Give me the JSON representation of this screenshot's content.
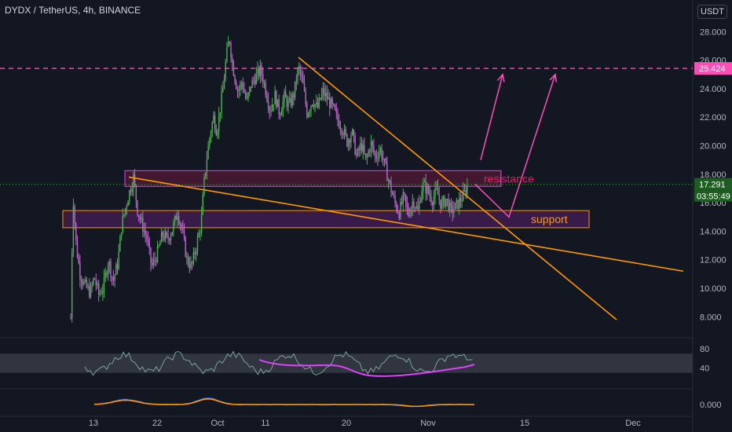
{
  "header": {
    "title": "DYDX / TetherUS, 4h, BINANCE",
    "currency": "USDT"
  },
  "colors": {
    "background": "#131722",
    "up": "#26a69a",
    "down": "#ef5350",
    "green": "#4caf50",
    "purple": "#ba68c8",
    "orange": "#ff9800",
    "pink": "#ff4db8",
    "magenta": "#e040fb",
    "blue": "#2962ff",
    "axis": "#b2b5be",
    "grid": "#2a2e39"
  },
  "chart_data": {
    "type": "candlestick",
    "symbol": "DYDX / TetherUS",
    "interval": "4h",
    "exchange": "BINANCE",
    "price_axis": {
      "ticks": [
        "28.000",
        "26.000",
        "24.000",
        "22.000",
        "20.000",
        "18.000",
        "16.000",
        "14.000",
        "12.000",
        "10.000",
        "8.000"
      ],
      "ylim": [
        7.8,
        28.8
      ]
    },
    "time_axis": {
      "labels": [
        "13",
        "22",
        "Oct",
        "11",
        "20",
        "Nov",
        "15",
        "Dec"
      ]
    },
    "last_price": "17.291",
    "countdown": "03:55:49",
    "horizontal_line_price": "25.424",
    "price_path": [
      [
        9.0,
        7.9
      ],
      [
        9.3,
        16.5
      ],
      [
        9.7,
        13
      ],
      [
        10.2,
        11
      ],
      [
        10.8,
        10.2
      ],
      [
        11.5,
        9.7
      ],
      [
        12,
        10.8
      ],
      [
        12.6,
        9.5
      ],
      [
        13.2,
        10.2
      ],
      [
        13.8,
        12
      ],
      [
        14.4,
        10.5
      ],
      [
        15,
        11.8
      ],
      [
        15.5,
        14.5
      ],
      [
        16.3,
        16.4
      ],
      [
        17,
        17.8
      ],
      [
        17.5,
        15.5
      ],
      [
        18,
        14.6
      ],
      [
        18.7,
        13.5
      ],
      [
        19.3,
        11.5
      ],
      [
        20,
        12.4
      ],
      [
        20.7,
        13.8
      ],
      [
        21.3,
        13.4
      ],
      [
        22,
        14.2
      ],
      [
        22.6,
        15.4
      ],
      [
        23.2,
        14
      ],
      [
        23.8,
        12
      ],
      [
        24.4,
        11.5
      ],
      [
        25,
        13
      ],
      [
        25.6,
        14.5
      ],
      [
        26,
        17.5
      ],
      [
        26.4,
        19.5
      ],
      [
        26.8,
        21
      ],
      [
        27.2,
        22
      ],
      [
        27.6,
        21
      ],
      [
        28,
        22.5
      ],
      [
        28.4,
        24
      ],
      [
        28.8,
        26.2
      ],
      [
        29.2,
        27.6
      ],
      [
        29.5,
        26
      ],
      [
        29.9,
        24.8
      ],
      [
        30.3,
        23.8
      ],
      [
        30.8,
        24.5
      ],
      [
        31.4,
        23
      ],
      [
        31.9,
        24.2
      ],
      [
        32.5,
        24.8
      ],
      [
        33.2,
        25.3
      ],
      [
        33.8,
        24
      ],
      [
        34.4,
        22.5
      ],
      [
        35,
        23.5
      ],
      [
        35.6,
        22.3
      ],
      [
        36.2,
        23.4
      ],
      [
        36.8,
        22.8
      ],
      [
        37.4,
        23.6
      ],
      [
        38,
        25.5
      ],
      [
        38.5,
        24.5
      ],
      [
        39.1,
        22.3
      ],
      [
        39.8,
        23.2
      ],
      [
        40.4,
        22.6
      ],
      [
        41.1,
        23.8
      ],
      [
        41.8,
        23.2
      ],
      [
        42.4,
        22.6
      ],
      [
        43,
        21.8
      ],
      [
        43.6,
        21.2
      ],
      [
        44.2,
        20.3
      ],
      [
        44.8,
        21
      ],
      [
        45.4,
        19.2
      ],
      [
        46,
        20.1
      ],
      [
        46.6,
        18.9
      ],
      [
        47.2,
        20.2
      ],
      [
        47.8,
        19.2
      ],
      [
        48.4,
        19.8
      ],
      [
        49,
        18.6
      ],
      [
        49.6,
        17.3
      ],
      [
        50.2,
        16.1
      ],
      [
        50.8,
        15.3
      ],
      [
        51.4,
        16.4
      ],
      [
        52,
        15.2
      ],
      [
        52.6,
        16.2
      ],
      [
        53.2,
        15.4
      ],
      [
        53.8,
        17.3
      ],
      [
        54.4,
        16.9
      ],
      [
        55,
        16.2
      ],
      [
        55.6,
        16.8
      ],
      [
        56.2,
        15.8
      ],
      [
        56.8,
        16.3
      ],
      [
        57.4,
        15.4
      ],
      [
        58,
        15.7
      ],
      [
        58.5,
        16.1
      ],
      [
        59.1,
        16.6
      ],
      [
        59.6,
        17.3
      ]
    ],
    "zones": [
      {
        "label": "resistance",
        "price_low": 17.15,
        "price_high": 18.25,
        "x_start": 15.9,
        "x_end": 63.8
      },
      {
        "label": "support",
        "price_low": 14.25,
        "price_high": 15.45,
        "x_start": 8.0,
        "x_end": 75.0
      }
    ],
    "trendlines": [
      {
        "name": "descending-resistance",
        "points": [
          [
            38.0,
            26.2
          ],
          [
            78.5,
            7.8
          ]
        ]
      },
      {
        "name": "descending-support",
        "points": [
          [
            16.4,
            17.8
          ],
          [
            87.0,
            11.2
          ]
        ]
      }
    ],
    "projections": [
      {
        "name": "breakout-arrow-1",
        "points": [
          [
            61.2,
            19.0
          ],
          [
            64.0,
            25.0
          ]
        ]
      },
      {
        "name": "breakout-arrow-2",
        "points": [
          [
            60.5,
            17.3
          ],
          [
            64.8,
            15.0
          ],
          [
            70.7,
            25.0
          ]
        ]
      }
    ],
    "rsi_pane": {
      "ticks": [
        "80",
        "40"
      ],
      "band": [
        30,
        70
      ],
      "ylim": [
        0,
        100
      ]
    },
    "macd_pane": {
      "ticks": [
        "0.000"
      ]
    }
  }
}
